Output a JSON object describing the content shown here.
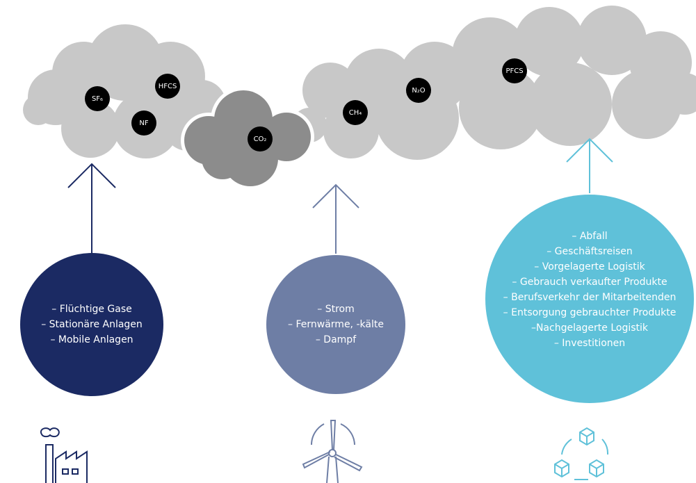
{
  "gases": [
    "SF₆",
    "HFCS",
    "NF",
    "CO₂",
    "CH₄",
    "N₂O",
    "PFCS"
  ],
  "scopes": [
    {
      "lines": [
        "– Flüchtige Gase",
        "– Stationäre Anlagen",
        "– Mobile Anlagen"
      ]
    },
    {
      "lines": [
        "– Strom",
        "– Fernwärme, -kälte",
        "– Dampf"
      ]
    },
    {
      "lines": [
        "– Abfall",
        "– Geschäftsreisen",
        "– Vorgelagerte Logistik",
        "– Gebrauch verkaufter Produkte",
        "– Berufsverkehr der Mitarbeitenden",
        "– Entsorgung gebrauchter Produkte",
        "–Nachgelagerte Logistik",
        "– Investitionen"
      ]
    }
  ]
}
